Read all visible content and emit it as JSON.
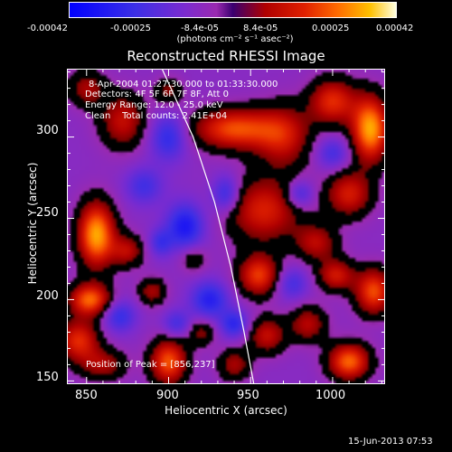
{
  "chart_data": {
    "type": "heatmap",
    "title": "Reconstructed RHESSI Image",
    "xlabel": "Heliocentric X (arcsec)",
    "ylabel": "Heliocentric Y (arcsec)",
    "xlim": [
      838,
      1032
    ],
    "ylim": [
      148,
      342
    ],
    "x_ticks": [
      "850",
      "900",
      "950",
      "1000"
    ],
    "y_ticks": [
      "150",
      "200",
      "250",
      "300"
    ],
    "colorbar": {
      "ticks": [
        "-0.00042",
        "-0.00025",
        "-8.4e-05",
        "8.4e-05",
        "0.00025",
        "0.00042"
      ],
      "label": "(photons cm⁻² s⁻¹ asec⁻²)",
      "range": [
        -0.00042,
        0.00042
      ]
    },
    "annotations": {
      "time": "8-Apr-2004 01:27:30.000 to 01:33:30.000",
      "detectors": "Detectors: 4F 5F 6F 7F 8F, Att 0",
      "energy": "Energy Range: 12.0 - 25.0 keV",
      "clean": "Clean    Total counts: 2.41E+04",
      "peak": "Position of Peak = [856,237]"
    },
    "peak": {
      "x": 856,
      "y": 237
    },
    "limb_curve_points": [
      [
        896,
        342
      ],
      [
        915,
        300
      ],
      [
        928,
        260
      ],
      [
        938,
        220
      ],
      [
        946,
        180
      ],
      [
        952,
        148
      ]
    ],
    "blobs": [
      {
        "x": 856,
        "y": 240,
        "sx": 8,
        "sy": 14,
        "v": 0.00042
      },
      {
        "x": 852,
        "y": 200,
        "sx": 9,
        "sy": 7,
        "v": 0.00035
      },
      {
        "x": 845,
        "y": 175,
        "sx": 9,
        "sy": 9,
        "v": 0.00028
      },
      {
        "x": 860,
        "y": 160,
        "sx": 10,
        "sy": 7,
        "v": 0.00018
      },
      {
        "x": 900,
        "y": 162,
        "sx": 8,
        "sy": 10,
        "v": 0.00033
      },
      {
        "x": 890,
        "y": 205,
        "sx": 6,
        "sy": 6,
        "v": 0.00018
      },
      {
        "x": 875,
        "y": 230,
        "sx": 7,
        "sy": 7,
        "v": 0.0002
      },
      {
        "x": 872,
        "y": 310,
        "sx": 10,
        "sy": 12,
        "v": 0.00022
      },
      {
        "x": 850,
        "y": 330,
        "sx": 8,
        "sy": 8,
        "v": 0.00018
      },
      {
        "x": 900,
        "y": 328,
        "sx": 6,
        "sy": 6,
        "v": 0.00015
      },
      {
        "x": 940,
        "y": 305,
        "sx": 18,
        "sy": 9,
        "v": 0.00032
      },
      {
        "x": 970,
        "y": 300,
        "sx": 12,
        "sy": 14,
        "v": 0.00022
      },
      {
        "x": 1000,
        "y": 322,
        "sx": 10,
        "sy": 10,
        "v": 0.00028
      },
      {
        "x": 1023,
        "y": 305,
        "sx": 8,
        "sy": 14,
        "v": 0.00042
      },
      {
        "x": 958,
        "y": 255,
        "sx": 16,
        "sy": 14,
        "v": 0.00026
      },
      {
        "x": 1010,
        "y": 265,
        "sx": 10,
        "sy": 10,
        "v": 0.00025
      },
      {
        "x": 990,
        "y": 235,
        "sx": 9,
        "sy": 8,
        "v": 0.0002
      },
      {
        "x": 955,
        "y": 215,
        "sx": 9,
        "sy": 9,
        "v": 0.0003
      },
      {
        "x": 1002,
        "y": 215,
        "sx": 8,
        "sy": 7,
        "v": 0.00024
      },
      {
        "x": 1025,
        "y": 205,
        "sx": 8,
        "sy": 10,
        "v": 0.00032
      },
      {
        "x": 960,
        "y": 178,
        "sx": 8,
        "sy": 8,
        "v": 0.00022
      },
      {
        "x": 985,
        "y": 185,
        "sx": 8,
        "sy": 8,
        "v": 0.0002
      },
      {
        "x": 1010,
        "y": 162,
        "sx": 9,
        "sy": 8,
        "v": 0.00035
      },
      {
        "x": 940,
        "y": 160,
        "sx": 7,
        "sy": 7,
        "v": 0.00018
      },
      {
        "x": 915,
        "y": 225,
        "sx": 6,
        "sy": 6,
        "v": 0.00012
      },
      {
        "x": 920,
        "y": 180,
        "sx": 6,
        "sy": 6,
        "v": 0.00015
      },
      {
        "x": 885,
        "y": 270,
        "sx": 8,
        "sy": 8,
        "v": -0.00015
      },
      {
        "x": 900,
        "y": 300,
        "sx": 8,
        "sy": 10,
        "v": -0.0002
      },
      {
        "x": 910,
        "y": 245,
        "sx": 8,
        "sy": 10,
        "v": -0.00025
      },
      {
        "x": 925,
        "y": 200,
        "sx": 8,
        "sy": 8,
        "v": -0.00022
      },
      {
        "x": 935,
        "y": 265,
        "sx": 6,
        "sy": 8,
        "v": -0.0002
      },
      {
        "x": 870,
        "y": 190,
        "sx": 7,
        "sy": 7,
        "v": -0.00018
      },
      {
        "x": 905,
        "y": 185,
        "sx": 6,
        "sy": 6,
        "v": -0.00015
      },
      {
        "x": 980,
        "y": 265,
        "sx": 6,
        "sy": 6,
        "v": -0.00018
      },
      {
        "x": 1000,
        "y": 290,
        "sx": 7,
        "sy": 7,
        "v": -0.00015
      },
      {
        "x": 975,
        "y": 210,
        "sx": 7,
        "sy": 7,
        "v": -0.00015
      },
      {
        "x": 895,
        "y": 235,
        "sx": 5,
        "sy": 6,
        "v": -0.00015
      },
      {
        "x": 940,
        "y": 185,
        "sx": 6,
        "sy": 6,
        "v": -0.0002
      }
    ],
    "background_level": -9e-05
  },
  "footer": {
    "date": "15-Jun-2013 07:53"
  }
}
